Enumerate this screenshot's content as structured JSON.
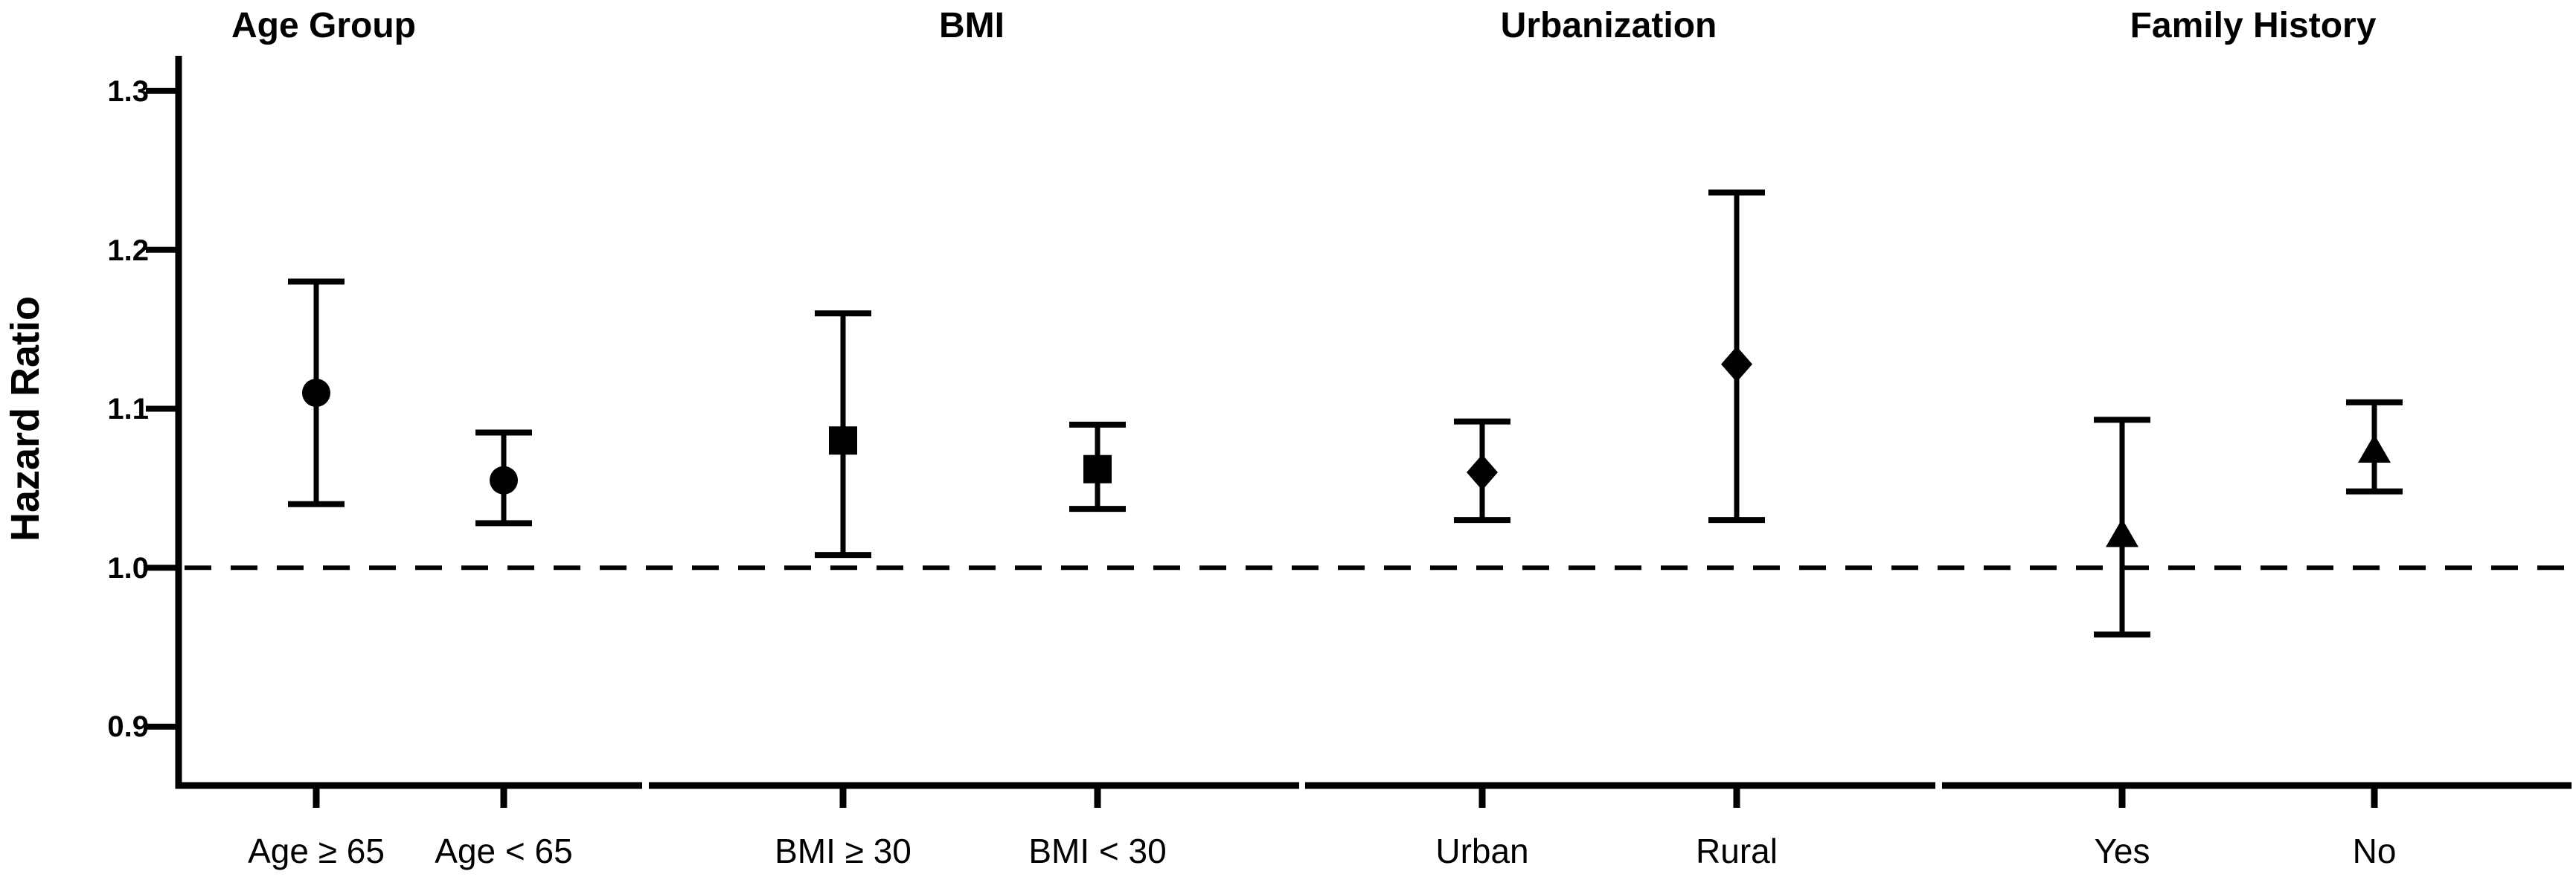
{
  "figure": {
    "background_color": "#ffffff",
    "ink_color": "#000000"
  },
  "chart_data": {
    "type": "scatter",
    "subtype": "forest-plot-errorbars",
    "title": "",
    "xlabel": "",
    "ylabel": "Hazard Ratio",
    "grid": false,
    "legend": "none",
    "ylim": [
      0.863,
      1.322
    ],
    "y_ticks": [
      1.3,
      1.2,
      1.1,
      1.0,
      0.9
    ],
    "y_tick_labels": [
      "1.3",
      "1.2",
      "1.1",
      "1.0",
      "0.9"
    ],
    "reference_line": {
      "value": 1.0,
      "style": "dashed",
      "color": "#000000"
    },
    "panels": [
      {
        "title": "Age Group",
        "marker": "circle",
        "points": [
          {
            "label": "Age ≥ 65",
            "hr": 1.11,
            "ci_low": 1.04,
            "ci_high": 1.18
          },
          {
            "label": "Age < 65",
            "hr": 1.055,
            "ci_low": 1.028,
            "ci_high": 1.085
          }
        ]
      },
      {
        "title": "BMI",
        "marker": "square",
        "points": [
          {
            "label": "BMI ≥ 30",
            "hr": 1.08,
            "ci_low": 1.008,
            "ci_high": 1.16
          },
          {
            "label": "BMI < 30",
            "hr": 1.062,
            "ci_low": 1.037,
            "ci_high": 1.09
          }
        ]
      },
      {
        "title": "Urbanization",
        "marker": "diamond",
        "points": [
          {
            "label": "Urban",
            "hr": 1.06,
            "ci_low": 1.03,
            "ci_high": 1.092
          },
          {
            "label": "Rural",
            "hr": 1.128,
            "ci_low": 1.03,
            "ci_high": 1.236
          }
        ]
      },
      {
        "title": "Family History",
        "marker": "triangle",
        "points": [
          {
            "label": "Yes",
            "hr": 1.021,
            "ci_low": 0.958,
            "ci_high": 1.093
          },
          {
            "label": "No",
            "hr": 1.074,
            "ci_low": 1.048,
            "ci_high": 1.104
          }
        ]
      }
    ]
  }
}
